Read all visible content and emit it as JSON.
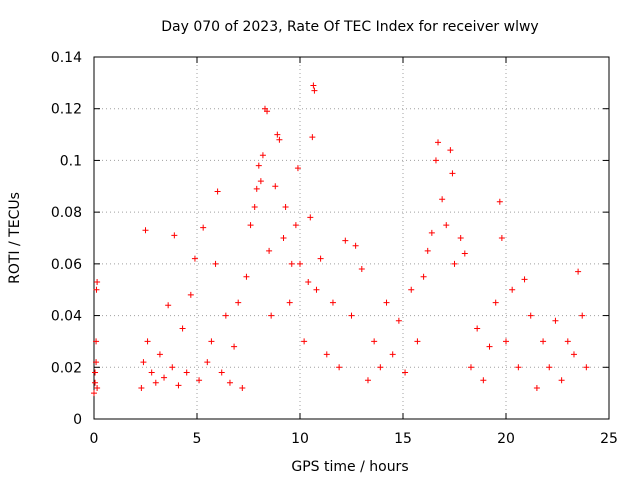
{
  "chart_data": {
    "type": "scatter",
    "title": "Day 070 of 2023, Rate Of TEC Index for receiver wlwy",
    "xlabel": "GPS time / hours",
    "ylabel": "ROTI / TECUs",
    "xlim": [
      0,
      25
    ],
    "ylim": [
      0,
      0.14
    ],
    "x_ticks": [
      0,
      5,
      10,
      15,
      20,
      25
    ],
    "y_ticks": [
      0,
      0.02,
      0.04,
      0.06,
      0.08,
      0.1,
      0.12,
      0.14
    ],
    "x_tick_labels": [
      "0",
      "5",
      "10",
      "15",
      "20",
      "25"
    ],
    "y_tick_labels": [
      "0",
      "0.02",
      "0.04",
      "0.06",
      "0.08",
      "0.1",
      "0.12",
      "0.14"
    ],
    "grid": true,
    "marker": "+",
    "marker_color": "#ff0000",
    "series": [
      {
        "name": "ROTI",
        "points": [
          [
            0.0,
            0.01
          ],
          [
            0.05,
            0.018
          ],
          [
            0.1,
            0.03
          ],
          [
            0.12,
            0.05
          ],
          [
            0.15,
            0.053
          ],
          [
            0.1,
            0.022
          ],
          [
            0.05,
            0.014
          ],
          [
            0.15,
            0.012
          ],
          [
            2.3,
            0.012
          ],
          [
            2.4,
            0.022
          ],
          [
            2.5,
            0.073
          ],
          [
            2.6,
            0.03
          ],
          [
            2.8,
            0.018
          ],
          [
            3.0,
            0.014
          ],
          [
            3.2,
            0.025
          ],
          [
            3.4,
            0.016
          ],
          [
            3.6,
            0.044
          ],
          [
            3.8,
            0.02
          ],
          [
            3.9,
            0.071
          ],
          [
            4.1,
            0.013
          ],
          [
            4.3,
            0.035
          ],
          [
            4.5,
            0.018
          ],
          [
            4.7,
            0.048
          ],
          [
            4.9,
            0.062
          ],
          [
            5.1,
            0.015
          ],
          [
            5.3,
            0.074
          ],
          [
            5.5,
            0.022
          ],
          [
            5.7,
            0.03
          ],
          [
            5.9,
            0.06
          ],
          [
            6.0,
            0.088
          ],
          [
            6.2,
            0.018
          ],
          [
            6.4,
            0.04
          ],
          [
            6.6,
            0.014
          ],
          [
            6.8,
            0.028
          ],
          [
            7.0,
            0.045
          ],
          [
            7.2,
            0.012
          ],
          [
            7.4,
            0.055
          ],
          [
            7.6,
            0.075
          ],
          [
            7.8,
            0.082
          ],
          [
            7.9,
            0.089
          ],
          [
            8.0,
            0.098
          ],
          [
            8.1,
            0.092
          ],
          [
            8.2,
            0.102
          ],
          [
            8.3,
            0.12
          ],
          [
            8.4,
            0.119
          ],
          [
            8.5,
            0.065
          ],
          [
            8.6,
            0.04
          ],
          [
            8.8,
            0.09
          ],
          [
            8.9,
            0.11
          ],
          [
            9.0,
            0.108
          ],
          [
            9.2,
            0.07
          ],
          [
            9.3,
            0.082
          ],
          [
            9.5,
            0.045
          ],
          [
            9.6,
            0.06
          ],
          [
            9.8,
            0.075
          ],
          [
            9.9,
            0.097
          ],
          [
            10.0,
            0.06
          ],
          [
            10.2,
            0.03
          ],
          [
            10.4,
            0.053
          ],
          [
            10.5,
            0.078
          ],
          [
            10.6,
            0.109
          ],
          [
            10.65,
            0.129
          ],
          [
            10.7,
            0.127
          ],
          [
            10.8,
            0.05
          ],
          [
            11.0,
            0.062
          ],
          [
            11.3,
            0.025
          ],
          [
            11.6,
            0.045
          ],
          [
            11.9,
            0.02
          ],
          [
            12.2,
            0.069
          ],
          [
            12.5,
            0.04
          ],
          [
            12.7,
            0.067
          ],
          [
            13.0,
            0.058
          ],
          [
            13.3,
            0.015
          ],
          [
            13.6,
            0.03
          ],
          [
            13.9,
            0.02
          ],
          [
            14.2,
            0.045
          ],
          [
            14.5,
            0.025
          ],
          [
            14.8,
            0.038
          ],
          [
            15.1,
            0.018
          ],
          [
            15.4,
            0.05
          ],
          [
            15.7,
            0.03
          ],
          [
            16.0,
            0.055
          ],
          [
            16.2,
            0.065
          ],
          [
            16.4,
            0.072
          ],
          [
            16.6,
            0.1
          ],
          [
            16.7,
            0.107
          ],
          [
            16.9,
            0.085
          ],
          [
            17.1,
            0.075
          ],
          [
            17.3,
            0.104
          ],
          [
            17.4,
            0.095
          ],
          [
            17.5,
            0.06
          ],
          [
            17.8,
            0.07
          ],
          [
            18.0,
            0.064
          ],
          [
            18.3,
            0.02
          ],
          [
            18.6,
            0.035
          ],
          [
            18.9,
            0.015
          ],
          [
            19.2,
            0.028
          ],
          [
            19.5,
            0.045
          ],
          [
            19.7,
            0.084
          ],
          [
            19.8,
            0.07
          ],
          [
            20.0,
            0.03
          ],
          [
            20.3,
            0.05
          ],
          [
            20.6,
            0.02
          ],
          [
            20.9,
            0.054
          ],
          [
            21.2,
            0.04
          ],
          [
            21.5,
            0.012
          ],
          [
            21.8,
            0.03
          ],
          [
            22.1,
            0.02
          ],
          [
            22.4,
            0.038
          ],
          [
            22.7,
            0.015
          ],
          [
            23.0,
            0.03
          ],
          [
            23.3,
            0.025
          ],
          [
            23.5,
            0.057
          ],
          [
            23.7,
            0.04
          ],
          [
            23.9,
            0.02
          ]
        ]
      }
    ]
  }
}
